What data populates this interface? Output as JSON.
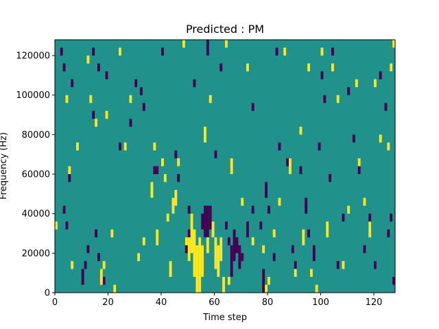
{
  "chart_data": {
    "type": "heatmap",
    "title": "Predicted : PM",
    "xlabel": "Time step",
    "ylabel": "Frequency (Hz)",
    "xlim": [
      0,
      128
    ],
    "ylim": [
      0,
      128000
    ],
    "x_ticks": [
      0,
      20,
      40,
      60,
      80,
      100,
      120
    ],
    "y_ticks": [
      0,
      20000,
      40000,
      60000,
      80000,
      100000,
      120000
    ],
    "grid": false,
    "colors": {
      "background_value": "#21918c",
      "low_value": "#440154",
      "high_value": "#fde725"
    },
    "cells_description": "Time steps x frequency bins grid; most cells are the mid value, with scattered low (purple) and high (yellow) cells. Cells listed as [time_step, frequency_start_hz, frequency_end_hz].",
    "low_cells": [
      [
        2,
        120000,
        124000
      ],
      [
        3,
        112000,
        116000
      ],
      [
        5,
        56000,
        60000
      ],
      [
        6,
        104000,
        108000
      ],
      [
        3,
        40000,
        44000
      ],
      [
        4,
        32000,
        36000
      ],
      [
        10,
        4000,
        12000
      ],
      [
        11,
        12000,
        16000
      ],
      [
        12,
        20000,
        24000
      ],
      [
        14,
        120000,
        124000
      ],
      [
        16,
        112000,
        116000
      ],
      [
        14,
        88000,
        92000
      ],
      [
        15,
        28000,
        32000
      ],
      [
        16,
        16000,
        20000
      ],
      [
        19,
        108000,
        112000
      ],
      [
        18,
        4000,
        8000
      ],
      [
        24,
        72000,
        76000
      ],
      [
        28,
        84000,
        88000
      ],
      [
        30,
        104000,
        108000
      ],
      [
        32,
        100000,
        104000
      ],
      [
        33,
        92000,
        96000
      ],
      [
        37,
        60000,
        64000
      ],
      [
        38,
        60000,
        64000
      ],
      [
        40,
        120000,
        124000
      ],
      [
        45,
        68000,
        72000
      ],
      [
        46,
        56000,
        60000
      ],
      [
        49,
        20000,
        24000
      ],
      [
        50,
        40000,
        44000
      ],
      [
        50,
        28000,
        32000
      ],
      [
        51,
        36000,
        40000
      ],
      [
        52,
        104000,
        108000
      ],
      [
        53,
        20000,
        24000
      ],
      [
        55,
        32000,
        40000
      ],
      [
        56,
        28000,
        44000
      ],
      [
        57,
        28000,
        44000
      ],
      [
        58,
        32000,
        44000
      ],
      [
        57,
        120000,
        128000
      ],
      [
        62,
        112000,
        116000
      ],
      [
        60,
        68000,
        72000
      ],
      [
        64,
        32000,
        36000
      ],
      [
        65,
        24000,
        28000
      ],
      [
        66,
        8000,
        24000
      ],
      [
        67,
        16000,
        32000
      ],
      [
        68,
        20000,
        28000
      ],
      [
        69,
        12000,
        24000
      ],
      [
        70,
        16000,
        20000
      ],
      [
        72,
        28000,
        36000
      ],
      [
        74,
        92000,
        96000
      ],
      [
        74,
        40000,
        44000
      ],
      [
        77,
        32000,
        36000
      ],
      [
        78,
        0,
        12000
      ],
      [
        79,
        48000,
        56000
      ],
      [
        80,
        40000,
        44000
      ],
      [
        82,
        16000,
        20000
      ],
      [
        83,
        120000,
        124000
      ],
      [
        84,
        72000,
        76000
      ],
      [
        87,
        64000,
        68000
      ],
      [
        89,
        20000,
        24000
      ],
      [
        90,
        12000,
        16000
      ],
      [
        92,
        60000,
        64000
      ],
      [
        94,
        40000,
        48000
      ],
      [
        95,
        28000,
        32000
      ],
      [
        97,
        16000,
        24000
      ],
      [
        99,
        72000,
        76000
      ],
      [
        100,
        108000,
        112000
      ],
      [
        101,
        96000,
        100000
      ],
      [
        103,
        56000,
        60000
      ],
      [
        104,
        120000,
        124000
      ],
      [
        106,
        12000,
        16000
      ],
      [
        108,
        36000,
        40000
      ],
      [
        110,
        100000,
        104000
      ],
      [
        112,
        76000,
        80000
      ],
      [
        114,
        60000,
        64000
      ],
      [
        116,
        20000,
        24000
      ],
      [
        118,
        32000,
        40000
      ],
      [
        120,
        12000,
        16000
      ],
      [
        122,
        108000,
        112000
      ],
      [
        124,
        92000,
        96000
      ],
      [
        125,
        28000,
        32000
      ],
      [
        126,
        36000,
        40000
      ],
      [
        127,
        4000,
        8000
      ]
    ],
    "high_cells": [
      [
        0,
        32000,
        36000
      ],
      [
        4,
        96000,
        100000
      ],
      [
        5,
        60000,
        64000
      ],
      [
        6,
        12000,
        16000
      ],
      [
        8,
        72000,
        76000
      ],
      [
        12,
        116000,
        120000
      ],
      [
        13,
        96000,
        100000
      ],
      [
        15,
        84000,
        88000
      ],
      [
        17,
        4000,
        12000
      ],
      [
        18,
        12000,
        16000
      ],
      [
        19,
        88000,
        92000
      ],
      [
        21,
        28000,
        32000
      ],
      [
        22,
        0,
        4000
      ],
      [
        24,
        120000,
        124000
      ],
      [
        26,
        72000,
        76000
      ],
      [
        28,
        96000,
        100000
      ],
      [
        31,
        16000,
        20000
      ],
      [
        33,
        24000,
        28000
      ],
      [
        36,
        48000,
        56000
      ],
      [
        37,
        72000,
        76000
      ],
      [
        38,
        24000,
        32000
      ],
      [
        40,
        64000,
        68000
      ],
      [
        41,
        56000,
        60000
      ],
      [
        42,
        36000,
        40000
      ],
      [
        43,
        8000,
        16000
      ],
      [
        44,
        40000,
        48000
      ],
      [
        45,
        44000,
        52000
      ],
      [
        46,
        64000,
        68000
      ],
      [
        48,
        124000,
        128000
      ],
      [
        49,
        24000,
        28000
      ],
      [
        50,
        16000,
        28000
      ],
      [
        51,
        20000,
        40000
      ],
      [
        52,
        8000,
        32000
      ],
      [
        53,
        0,
        24000
      ],
      [
        54,
        0,
        28000
      ],
      [
        55,
        8000,
        24000
      ],
      [
        56,
        76000,
        84000
      ],
      [
        57,
        20000,
        28000
      ],
      [
        58,
        96000,
        100000
      ],
      [
        59,
        28000,
        36000
      ],
      [
        60,
        12000,
        28000
      ],
      [
        61,
        8000,
        24000
      ],
      [
        62,
        16000,
        28000
      ],
      [
        63,
        0,
        8000
      ],
      [
        64,
        124000,
        128000
      ],
      [
        65,
        4000,
        8000
      ],
      [
        66,
        60000,
        68000
      ],
      [
        70,
        44000,
        48000
      ],
      [
        72,
        112000,
        116000
      ],
      [
        74,
        24000,
        28000
      ],
      [
        78,
        20000,
        24000
      ],
      [
        79,
        0,
        4000
      ],
      [
        80,
        4000,
        8000
      ],
      [
        82,
        28000,
        32000
      ],
      [
        84,
        44000,
        48000
      ],
      [
        86,
        120000,
        124000
      ],
      [
        88,
        60000,
        68000
      ],
      [
        90,
        8000,
        12000
      ],
      [
        92,
        80000,
        84000
      ],
      [
        93,
        24000,
        32000
      ],
      [
        95,
        112000,
        116000
      ],
      [
        96,
        8000,
        12000
      ],
      [
        98,
        0,
        4000
      ],
      [
        100,
        120000,
        124000
      ],
      [
        102,
        28000,
        36000
      ],
      [
        104,
        112000,
        116000
      ],
      [
        106,
        96000,
        100000
      ],
      [
        108,
        12000,
        16000
      ],
      [
        110,
        40000,
        44000
      ],
      [
        113,
        104000,
        108000
      ],
      [
        114,
        64000,
        68000
      ],
      [
        116,
        44000,
        48000
      ],
      [
        118,
        28000,
        36000
      ],
      [
        120,
        104000,
        108000
      ],
      [
        122,
        76000,
        80000
      ],
      [
        125,
        72000,
        76000
      ],
      [
        126,
        112000,
        116000
      ],
      [
        127,
        124000,
        128000
      ]
    ]
  }
}
